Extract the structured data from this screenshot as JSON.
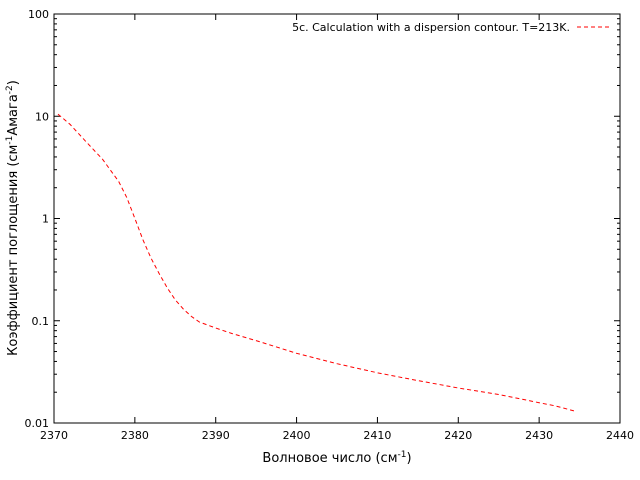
{
  "chart_data": {
    "type": "line",
    "title": "",
    "xlabel": {
      "base": "Волновое число (см",
      "sup": "-1",
      "tail": ")"
    },
    "ylabel": {
      "base": "Коэффициент поглощения (см",
      "sup1": "-1",
      "mid": "Амага",
      "sup2": "-2",
      "tail": ")"
    },
    "xlim": [
      2370,
      2440
    ],
    "ylim": [
      0.01,
      100
    ],
    "y_scale": "log",
    "grid": false,
    "legend_position": "top-right",
    "x_ticks": [
      2370,
      2380,
      2390,
      2400,
      2410,
      2420,
      2430,
      2440
    ],
    "y_ticks": [
      {
        "value": 0.01,
        "label": "0.01"
      },
      {
        "value": 0.1,
        "label": "0.1"
      },
      {
        "value": 1,
        "label": "1"
      },
      {
        "value": 10,
        "label": "10"
      },
      {
        "value": 100,
        "label": "100"
      }
    ],
    "series": [
      {
        "name": "5c. Calculation with a dispersion contour. T=213K.",
        "color": "#ff0000",
        "style": "dashed",
        "x": [
          2370.5,
          2372,
          2374,
          2376,
          2378,
          2379,
          2380,
          2381,
          2382,
          2383,
          2384,
          2385,
          2386,
          2387,
          2388,
          2390,
          2392,
          2395,
          2400,
          2405,
          2410,
          2415,
          2420,
          2425,
          2428,
          2430,
          2432,
          2434.5
        ],
        "y": [
          10.5,
          8.3,
          5.6,
          3.8,
          2.3,
          1.6,
          1.0,
          0.62,
          0.41,
          0.29,
          0.21,
          0.16,
          0.13,
          0.11,
          0.097,
          0.085,
          0.075,
          0.064,
          0.048,
          0.038,
          0.031,
          0.026,
          0.022,
          0.019,
          0.017,
          0.0158,
          0.0147,
          0.013
        ]
      }
    ]
  }
}
